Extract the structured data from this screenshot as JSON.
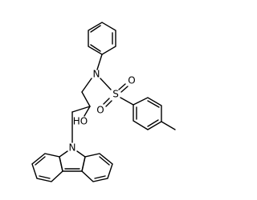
{
  "atoms": [
    {
      "label": "N"
    },
    {
      "label": "S"
    },
    {
      "label": "O"
    },
    {
      "label": "O"
    },
    {
      "label": "HO"
    },
    {
      "label": "N"
    }
  ]
}
